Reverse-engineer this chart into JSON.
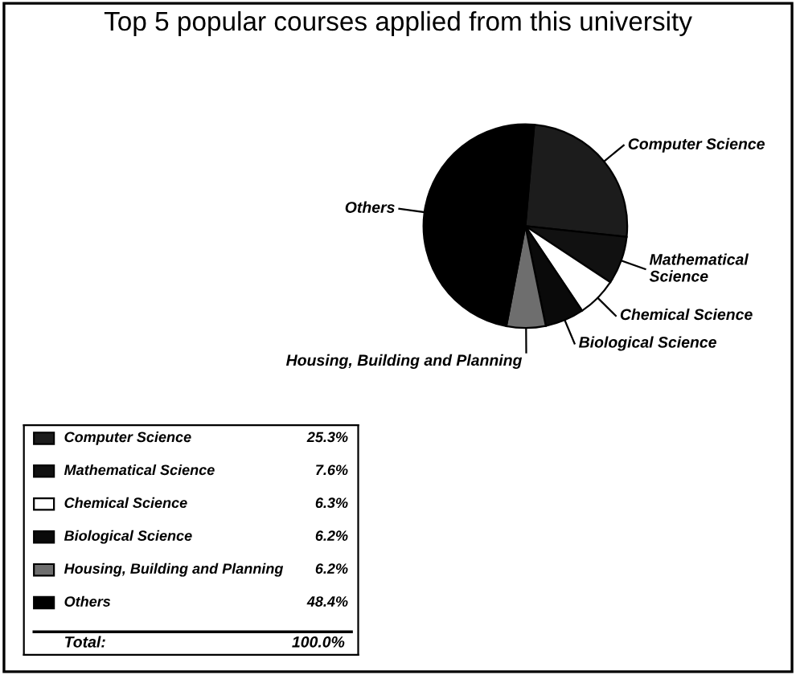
{
  "chart_data": {
    "type": "pie",
    "title": "Top 5 popular courses applied from this university",
    "categories": [
      "Computer Science",
      "Mathematical Science",
      "Chemical Science",
      "Biological Science",
      "Housing, Building and Planning",
      "Others"
    ],
    "values": [
      25.3,
      7.6,
      6.3,
      6.2,
      6.2,
      48.4
    ],
    "value_labels": [
      "25.3%",
      "7.6%",
      "6.3%",
      "6.2%",
      "6.2%",
      "48.4%"
    ],
    "colors": [
      "#1c1c1c",
      "#111111",
      "#ffffff",
      "#0a0a0a",
      "#6e6e6e",
      "#000000"
    ],
    "legend": "bottom left",
    "annotations": [
      "Total:",
      "100.0%"
    ]
  }
}
